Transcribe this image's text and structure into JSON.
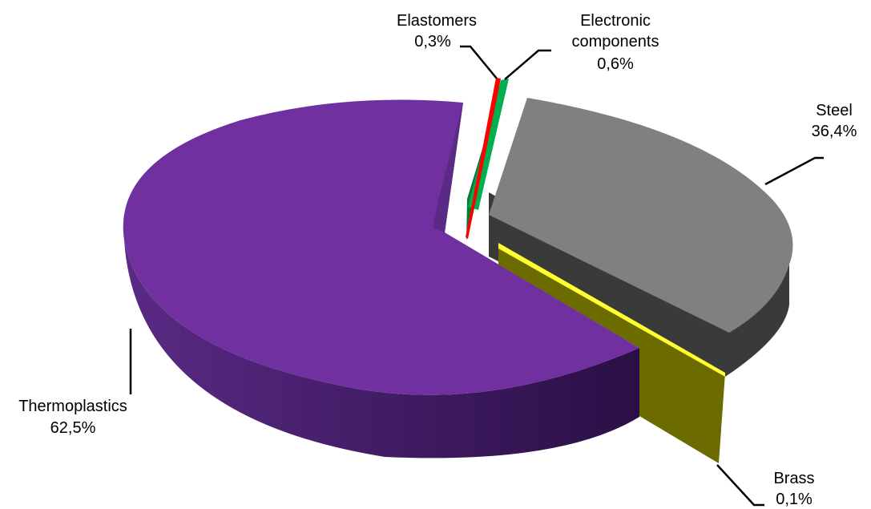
{
  "chart_data": {
    "type": "pie",
    "title": "",
    "slices": [
      {
        "label": "Thermoplastics",
        "value": 62.5,
        "value_label": "62,5%",
        "color": "#7030a0",
        "side_color": "#3d1a5a"
      },
      {
        "label": "Elastomers",
        "value": 0.3,
        "value_label": "0,3%",
        "color": "#ff0000",
        "side_color": "#a00000"
      },
      {
        "label": "Electronic components",
        "value": 0.6,
        "value_label": "0,6%",
        "color": "#00b050",
        "side_color": "#007a38"
      },
      {
        "label": "Steel",
        "value": 36.4,
        "value_label": "36,4%",
        "color": "#808080",
        "side_color": "#3a3a3a"
      },
      {
        "label": "Brass",
        "value": 0.1,
        "value_label": "0,1%",
        "color": "#808000",
        "side_color": "#5c5c00"
      }
    ],
    "legend": "none",
    "style": "3d-exploded"
  }
}
